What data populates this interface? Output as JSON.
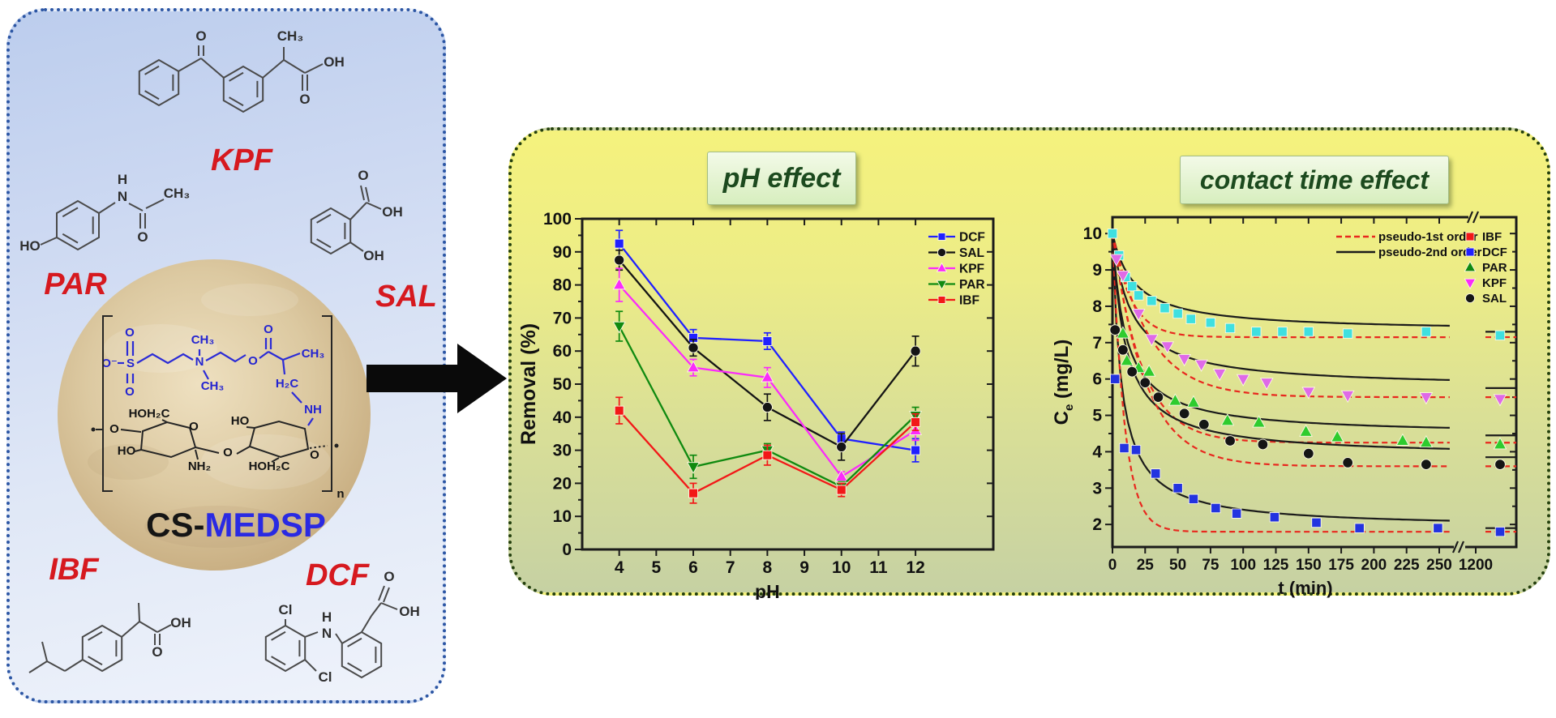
{
  "left_panel": {
    "molecule_labels": {
      "kpf": "KPF",
      "par": "PAR",
      "sal": "SAL",
      "ibf": "IBF",
      "dcf": "DCF"
    },
    "material": {
      "prefix": "CS-",
      "suffix": "MEDSP"
    },
    "atoms": {
      "kpf": [
        "O",
        "CH₃",
        "OH",
        "O"
      ],
      "par": [
        "HO",
        "H",
        "N",
        "O",
        "CH₃"
      ],
      "sal": [
        "O",
        "OH",
        "OH"
      ],
      "ibf": [
        "OH",
        "O"
      ],
      "dcf": [
        "Cl",
        "H",
        "N",
        "Cl",
        "O",
        "OH"
      ],
      "medsp": [
        "O⁻",
        "S",
        "O",
        "O",
        "CH₃",
        "N",
        "CH₃",
        "O",
        "O",
        "CH₃",
        "H₂C",
        "NH"
      ],
      "chitosan": [
        "HOH₂C",
        "O",
        "HO",
        "NH₂",
        "O",
        "HO",
        "HOH₂C",
        "O",
        "O",
        "n"
      ]
    }
  },
  "right_panel": {
    "ph_title": "pH effect",
    "time_title": "contact time effect"
  },
  "chart_data": [
    {
      "type": "line",
      "title": "pH effect",
      "xlabel": "pH",
      "ylabel": "Removal (%)",
      "x": [
        4,
        6,
        8,
        10,
        12
      ],
      "x_ticks": [
        4,
        5,
        6,
        7,
        8,
        9,
        10,
        11,
        12
      ],
      "y_ticks": [
        0,
        10,
        20,
        30,
        40,
        50,
        60,
        70,
        80,
        90,
        100
      ],
      "xlim": [
        3.0,
        14.1
      ],
      "ylim": [
        0,
        100
      ],
      "grid": false,
      "legend_position": "top-right",
      "series": [
        {
          "name": "DCF",
          "color": "#2020ff",
          "marker": "square",
          "values": [
            92.5,
            64,
            63,
            33.5,
            30
          ],
          "errors": [
            4,
            2.5,
            2.5,
            2,
            3.5
          ]
        },
        {
          "name": "SAL",
          "color": "#151515",
          "marker": "circle",
          "values": [
            87.5,
            61,
            43,
            31,
            60
          ],
          "errors": [
            3,
            2.5,
            4,
            4,
            4.5
          ]
        },
        {
          "name": "KPF",
          "color": "#fa2cfa",
          "marker": "triangle-up",
          "values": [
            80,
            55,
            52,
            22,
            36
          ],
          "errors": [
            5,
            2.5,
            3,
            1.5,
            3
          ]
        },
        {
          "name": "PAR",
          "color": "#108a10",
          "marker": "triangle-down",
          "values": [
            67.5,
            25,
            30,
            19,
            40.5
          ],
          "errors": [
            4.5,
            3.5,
            2,
            1.5,
            2.5
          ]
        },
        {
          "name": "IBF",
          "color": "#f21818",
          "marker": "square",
          "values": [
            42,
            17,
            28.5,
            18,
            38.5
          ],
          "errors": [
            4,
            3,
            3,
            2,
            2.5
          ]
        }
      ]
    },
    {
      "type": "scatter",
      "title": "contact time effect",
      "xlabel": "t (min)",
      "ylabel": {
        "base": "C",
        "sub": "e",
        "rest": " (mg/L)"
      },
      "x_ticks": [
        0,
        25,
        50,
        75,
        100,
        125,
        150,
        175,
        200,
        225,
        250,
        1200
      ],
      "y_ticks": [
        2,
        3,
        4,
        5,
        6,
        7,
        8,
        9,
        10
      ],
      "ylim": [
        1.38,
        10.45
      ],
      "axis_break_after": 250,
      "c0": 10,
      "fits_legend": [
        {
          "label": "pseudo-1st order",
          "color": "#e8281e",
          "dash": true
        },
        {
          "label": "pseudo-2nd order",
          "color": "#1b1b1b",
          "dash": false
        }
      ],
      "series": [
        {
          "name": "IBF",
          "legend_color": "#f21818",
          "plot_color": "#3fe0e0",
          "marker": "square",
          "fit1": {
            "ce": 7.15,
            "k": 0.07
          },
          "fit2": {
            "ce": 7.3,
            "k": 0.06
          },
          "points": [
            [
              0,
              10
            ],
            [
              5,
              9.4
            ],
            [
              10,
              8.8
            ],
            [
              15,
              8.55
            ],
            [
              20,
              8.3
            ],
            [
              30,
              8.15
            ],
            [
              40,
              7.95
            ],
            [
              50,
              7.8
            ],
            [
              60,
              7.65
            ],
            [
              75,
              7.55
            ],
            [
              90,
              7.4
            ],
            [
              110,
              7.3
            ],
            [
              130,
              7.3
            ],
            [
              150,
              7.3
            ],
            [
              180,
              7.25
            ],
            [
              240,
              7.3
            ],
            [
              1200,
              7.2
            ]
          ]
        },
        {
          "name": "DCF",
          "legend_color": "#2020ff",
          "plot_color": "#2333e0",
          "marker": "square",
          "fit1": {
            "ce": 1.8,
            "k": 0.11
          },
          "fit2": {
            "ce": 1.9,
            "k": 0.15
          },
          "points": [
            [
              2,
              6.0
            ],
            [
              9,
              4.1
            ],
            [
              18,
              4.05
            ],
            [
              33,
              3.4
            ],
            [
              50,
              3.0
            ],
            [
              62,
              2.7
            ],
            [
              79,
              2.45
            ],
            [
              95,
              2.3
            ],
            [
              124,
              2.2
            ],
            [
              156,
              2.05
            ],
            [
              189,
              1.9
            ],
            [
              249,
              1.9
            ],
            [
              1200,
              1.8
            ]
          ]
        },
        {
          "name": "PAR",
          "legend_color": "#108a10",
          "plot_color": "#2ecc2e",
          "marker": "triangle-up",
          "fit1": {
            "ce": 4.25,
            "k": 0.045
          },
          "fit2": {
            "ce": 4.45,
            "k": 0.1
          },
          "points": [
            [
              8,
              7.25
            ],
            [
              11,
              6.5
            ],
            [
              20,
              6.3
            ],
            [
              28,
              6.2
            ],
            [
              48,
              5.4
            ],
            [
              62,
              5.35
            ],
            [
              88,
              4.85
            ],
            [
              112,
              4.8
            ],
            [
              148,
              4.55
            ],
            [
              172,
              4.4
            ],
            [
              222,
              4.3
            ],
            [
              240,
              4.25
            ],
            [
              1200,
              4.2
            ]
          ]
        },
        {
          "name": "KPF",
          "legend_color": "#fa2cfa",
          "plot_color": "#df6ae8",
          "marker": "triangle-down",
          "fit1": {
            "ce": 5.5,
            "k": 0.035
          },
          "fit2": {
            "ce": 5.75,
            "k": 0.07
          },
          "points": [
            [
              3,
              9.3
            ],
            [
              8,
              8.85
            ],
            [
              20,
              7.8
            ],
            [
              30,
              7.1
            ],
            [
              42,
              6.9
            ],
            [
              55,
              6.55
            ],
            [
              68,
              6.4
            ],
            [
              82,
              6.15
            ],
            [
              100,
              6.0
            ],
            [
              118,
              5.9
            ],
            [
              150,
              5.65
            ],
            [
              180,
              5.55
            ],
            [
              240,
              5.5
            ],
            [
              1200,
              5.45
            ]
          ]
        },
        {
          "name": "SAL",
          "legend_color": "#151515",
          "plot_color": "#151515",
          "marker": "circle",
          "fit1": {
            "ce": 3.6,
            "k": 0.04
          },
          "fit2": {
            "ce": 3.85,
            "k": 0.1
          },
          "points": [
            [
              2,
              7.35
            ],
            [
              8,
              6.8
            ],
            [
              15,
              6.2
            ],
            [
              25,
              5.9
            ],
            [
              35,
              5.5
            ],
            [
              55,
              5.05
            ],
            [
              70,
              4.75
            ],
            [
              90,
              4.3
            ],
            [
              115,
              4.2
            ],
            [
              150,
              3.95
            ],
            [
              180,
              3.7
            ],
            [
              240,
              3.65
            ],
            [
              1200,
              3.65
            ]
          ]
        }
      ]
    }
  ]
}
